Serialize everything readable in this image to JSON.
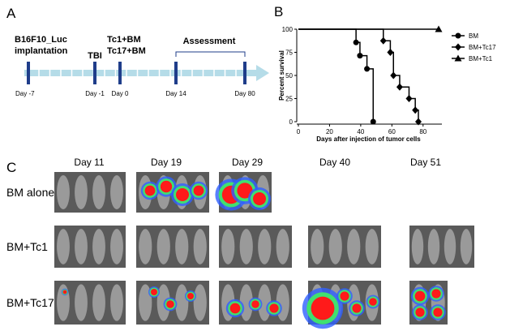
{
  "panels": {
    "a": {
      "label": "A",
      "assessment": "Assessment",
      "events": [
        {
          "lines": [
            "B16F10_Luc",
            "implantation"
          ],
          "day": "Day -7"
        },
        {
          "lines": [
            "TBI"
          ],
          "day": "Day -1"
        },
        {
          "lines": [
            "Tc1+BM",
            "Tc17+BM"
          ],
          "day": "Day 0"
        },
        {
          "lines": [],
          "day": "Day 14"
        },
        {
          "lines": [],
          "day": "Day 80"
        }
      ]
    },
    "b": {
      "label": "B"
    },
    "c": {
      "label": "C",
      "days": [
        "Day 11",
        "Day 19",
        "Day 29",
        "Day 40",
        "Day 51"
      ],
      "rows": [
        "BM alone",
        "BM+Tc1",
        "BM+Tc17"
      ]
    }
  },
  "chart_data": {
    "type": "line",
    "xlabel": "Days after injection of tumor cells",
    "ylabel": "Percent survival",
    "xlim": [
      0,
      90
    ],
    "ylim": [
      0,
      100
    ],
    "xticks": [
      0,
      20,
      40,
      60,
      80
    ],
    "yticks": [
      0,
      25,
      50,
      75,
      100
    ],
    "legend": "right",
    "series": [
      {
        "name": "BM",
        "marker": "circle",
        "color": "#000000",
        "x": [
          0,
          37,
          39.5,
          44,
          48
        ],
        "values": [
          100,
          85.7,
          71.4,
          57.1,
          0
        ]
      },
      {
        "name": "BM+Tc17",
        "marker": "diamond",
        "color": "#000000",
        "x": [
          0,
          54.5,
          59,
          61,
          65,
          71,
          75,
          77
        ],
        "values": [
          100,
          87.5,
          75,
          50,
          37.5,
          25,
          12.5,
          0
        ]
      },
      {
        "name": "BM+Tc1",
        "marker": "triangle",
        "color": "#000000",
        "x": [
          0,
          90
        ],
        "values": [
          100,
          100
        ]
      }
    ]
  }
}
